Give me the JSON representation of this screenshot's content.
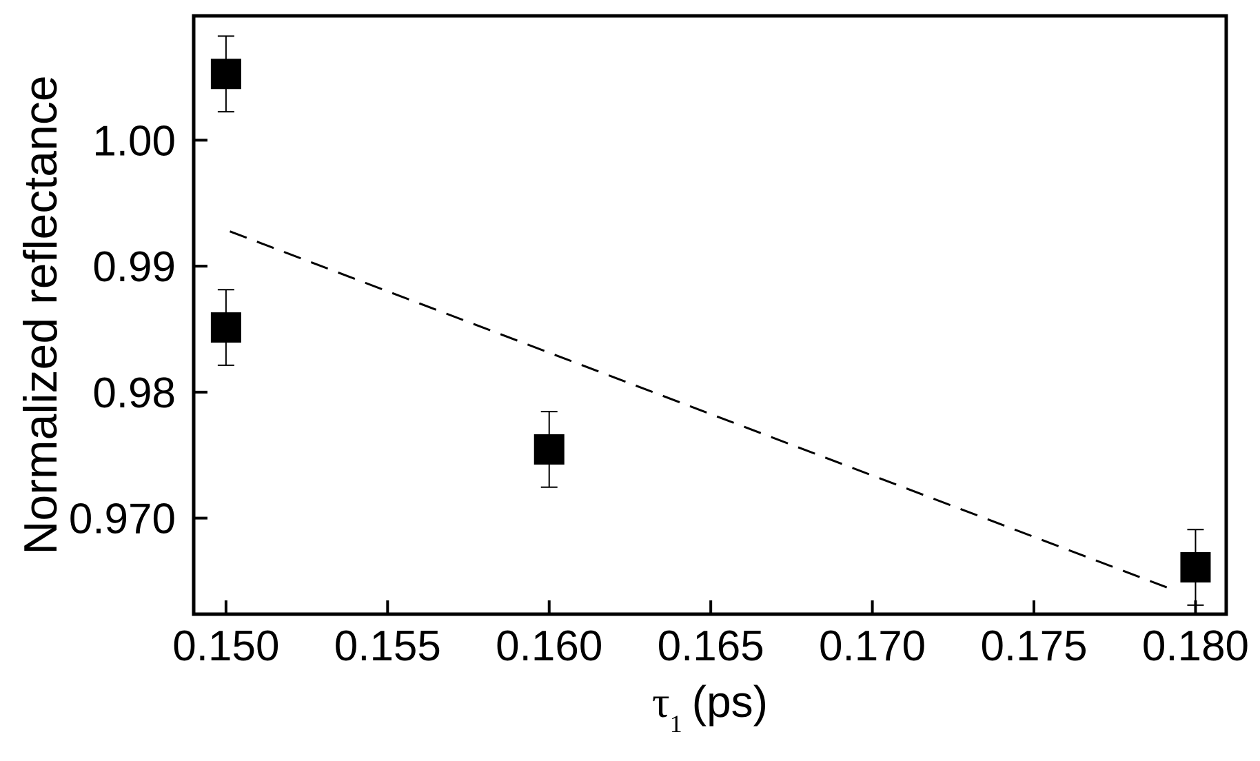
{
  "chart_data": {
    "type": "scatter",
    "ylabel": "Normalized reflectance",
    "xlabel": {
      "symbol": "τ",
      "subscript": "1",
      "text": "(ps)"
    },
    "xlim": [
      0.149,
      0.18095
    ],
    "ylim": [
      0.96237,
      1.00987
    ],
    "xticks": [
      {
        "value": 0.15,
        "label": "0.150"
      },
      {
        "value": 0.155,
        "label": "0.155"
      },
      {
        "value": 0.16,
        "label": "0.160"
      },
      {
        "value": 0.165,
        "label": "0.165"
      },
      {
        "value": 0.17,
        "label": "0.170"
      },
      {
        "value": 0.175,
        "label": "0.175"
      },
      {
        "value": 0.18,
        "label": "0.180"
      }
    ],
    "yticks": [
      {
        "value": 0.97,
        "label": "0.970"
      },
      {
        "value": 0.98,
        "label": "0.98"
      },
      {
        "value": 0.99,
        "label": "0.99"
      },
      {
        "value": 1.0,
        "label": "1.00"
      }
    ],
    "series": [
      {
        "style": "markers",
        "color": "#000000",
        "x": [
          0.15,
          0.15,
          0.16,
          0.18
        ],
        "values": [
          1.00526,
          0.98513,
          0.97545,
          0.96609
        ],
        "errors": [
          0.003,
          0.003,
          0.003,
          0.003
        ]
      },
      {
        "style": "dashed",
        "color": "#000000",
        "x": [
          0.15012,
          0.17912
        ],
        "values": [
          0.99276,
          0.96449
        ]
      }
    ]
  }
}
